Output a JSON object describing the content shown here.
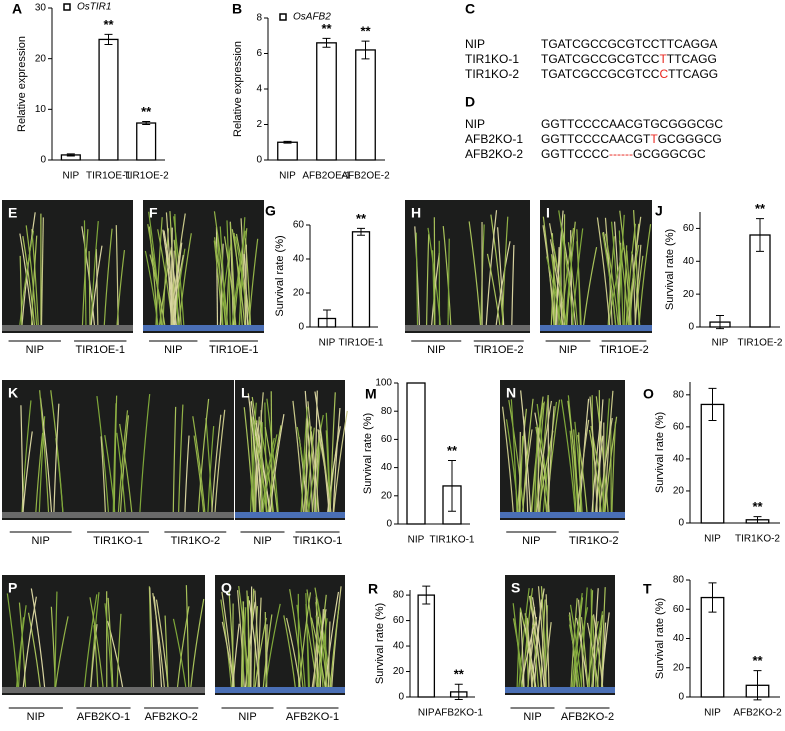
{
  "chart_data": [
    {
      "panel_label": "A",
      "type": "bar",
      "legend": "OsTIR1",
      "ylabel": "Relative expression",
      "categories": [
        "NIP",
        "TIR1OE-1",
        "TIR1OE-2"
      ],
      "values": [
        1,
        23.8,
        7.3
      ],
      "errors": [
        0.2,
        1,
        0.3
      ],
      "significance": [
        null,
        "**",
        "**"
      ],
      "ylim": [
        0,
        30
      ],
      "yticks": [
        0,
        10,
        20,
        30
      ],
      "color": "#000000"
    },
    {
      "panel_label": "B",
      "type": "bar",
      "legend": "OsAFB2",
      "ylabel": "Relative expression",
      "categories": [
        "NIP",
        "AFB2OE-1",
        "AFB2OE-2"
      ],
      "values": [
        1,
        6.6,
        6.2
      ],
      "errors": [
        0.05,
        0.25,
        0.5
      ],
      "significance": [
        null,
        "**",
        "**"
      ],
      "ylim": [
        0,
        8
      ],
      "yticks": [
        0,
        2,
        4,
        6,
        8
      ],
      "color": "#000000"
    },
    {
      "panel_label": "G",
      "type": "bar",
      "ylabel": "Survival rate (%)",
      "categories": [
        "NIP",
        "TIR1OE-1"
      ],
      "values": [
        5,
        56
      ],
      "errors": [
        5,
        2
      ],
      "significance": [
        null,
        "**"
      ],
      "ylim": [
        0,
        60
      ],
      "yticks": [
        0,
        20,
        40,
        60
      ],
      "color": "#000000"
    },
    {
      "panel_label": "J",
      "type": "bar",
      "ylabel": "Survival rate (%)",
      "categories": [
        "NIP",
        "TIR1OE-2"
      ],
      "values": [
        3,
        56
      ],
      "errors": [
        4,
        10
      ],
      "significance": [
        null,
        "**"
      ],
      "ylim": [
        0,
        70
      ],
      "yticks": [
        0,
        20,
        40,
        60
      ],
      "color": "#000000"
    },
    {
      "panel_label": "M",
      "type": "bar",
      "ylabel": "Survival rate (%)",
      "categories": [
        "NIP",
        "TIR1KO-1"
      ],
      "values": [
        100,
        27
      ],
      "errors": [
        0,
        18
      ],
      "significance": [
        null,
        "**"
      ],
      "ylim": [
        0,
        100
      ],
      "yticks": [
        0,
        20,
        40,
        60,
        80,
        100
      ],
      "color": "#000000"
    },
    {
      "panel_label": "O",
      "type": "bar",
      "ylabel": "Survival rate (%)",
      "categories": [
        "NIP",
        "TIR1KO-2"
      ],
      "values": [
        74,
        2
      ],
      "errors": [
        10,
        2
      ],
      "significance": [
        null,
        "**"
      ],
      "ylim": [
        0,
        88
      ],
      "yticks": [
        0,
        20,
        40,
        60,
        80
      ],
      "color": "#000000"
    },
    {
      "panel_label": "R",
      "type": "bar",
      "ylabel": "Survival rate (%)",
      "categories": [
        "NIP",
        "AFB2KO-1"
      ],
      "values": [
        80,
        4
      ],
      "errors": [
        7,
        6
      ],
      "significance": [
        null,
        "**"
      ],
      "ylim": [
        0,
        84
      ],
      "yticks": [
        0,
        20,
        40,
        60,
        80
      ],
      "color": "#000000"
    },
    {
      "panel_label": "T",
      "type": "bar",
      "ylabel": "Survival rate (%)",
      "categories": [
        "NIP",
        "AFB2KO-2"
      ],
      "values": [
        68,
        8
      ],
      "errors": [
        10,
        10
      ],
      "significance": [
        null,
        "**"
      ],
      "ylim": [
        0,
        80
      ],
      "yticks": [
        0,
        20,
        40,
        60,
        80
      ],
      "color": "#000000"
    }
  ],
  "sequences": [
    {
      "panel_label": "C",
      "rows": [
        {
          "name": "NIP",
          "parts": [
            {
              "text": "TGATCGCCGCGTCCTTCAGGA",
              "color": "#000000"
            }
          ]
        },
        {
          "name": "TIR1KO-1",
          "parts": [
            {
              "text": "TGATCGCCGCGTCC",
              "color": "#000000"
            },
            {
              "text": "T",
              "color": "#e8261f"
            },
            {
              "text": "TTCAGG",
              "color": "#000000"
            }
          ]
        },
        {
          "name": "TIR1KO-2",
          "parts": [
            {
              "text": "TGATCGCCGCGTCC",
              "color": "#000000"
            },
            {
              "text": "C",
              "color": "#e8261f"
            },
            {
              "text": "TTCAGG",
              "color": "#000000"
            }
          ]
        }
      ]
    },
    {
      "panel_label": "D",
      "rows": [
        {
          "name": "NIP",
          "parts": [
            {
              "text": "GGTTCCCCAACGTGCGGGCGC",
              "color": "#000000"
            }
          ]
        },
        {
          "name": "AFB2KO-1",
          "parts": [
            {
              "text": "GGTTCCCCAACGT",
              "color": "#000000"
            },
            {
              "text": "T",
              "color": "#e8261f"
            },
            {
              "text": "GCGGGCG",
              "color": "#000000"
            }
          ]
        },
        {
          "name": "AFB2KO-2",
          "parts": [
            {
              "text": "GGTTCCCC",
              "color": "#000000"
            },
            {
              "text": "------",
              "color": "#e8261f"
            },
            {
              "text": "GCGGGCGC",
              "color": "#000000"
            }
          ]
        }
      ]
    }
  ],
  "photos": [
    {
      "panel_label": "E",
      "groups": [
        "NIP",
        "TIR1OE-1"
      ]
    },
    {
      "panel_label": "F",
      "groups": [
        "NIP",
        "TIR1OE-1"
      ]
    },
    {
      "panel_label": "H",
      "groups": [
        "NIP",
        "TIR1OE-2"
      ]
    },
    {
      "panel_label": "I",
      "groups": [
        "NIP",
        "TIR1OE-2"
      ]
    },
    {
      "panel_label": "K",
      "groups": [
        "NIP",
        "TIR1KO-1",
        "TIR1KO-2"
      ]
    },
    {
      "panel_label": "L",
      "groups": [
        "NIP",
        "TIR1KO-1"
      ]
    },
    {
      "panel_label": "N",
      "groups": [
        "NIP",
        "TIR1KO-2"
      ]
    },
    {
      "panel_label": "P",
      "groups": [
        "NIP",
        "AFB2KO-1",
        "AFB2KO-2"
      ]
    },
    {
      "panel_label": "Q",
      "groups": [
        "NIP",
        "AFB2KO-1"
      ]
    },
    {
      "panel_label": "S",
      "groups": [
        "NIP",
        "AFB2KO-2"
      ]
    }
  ]
}
